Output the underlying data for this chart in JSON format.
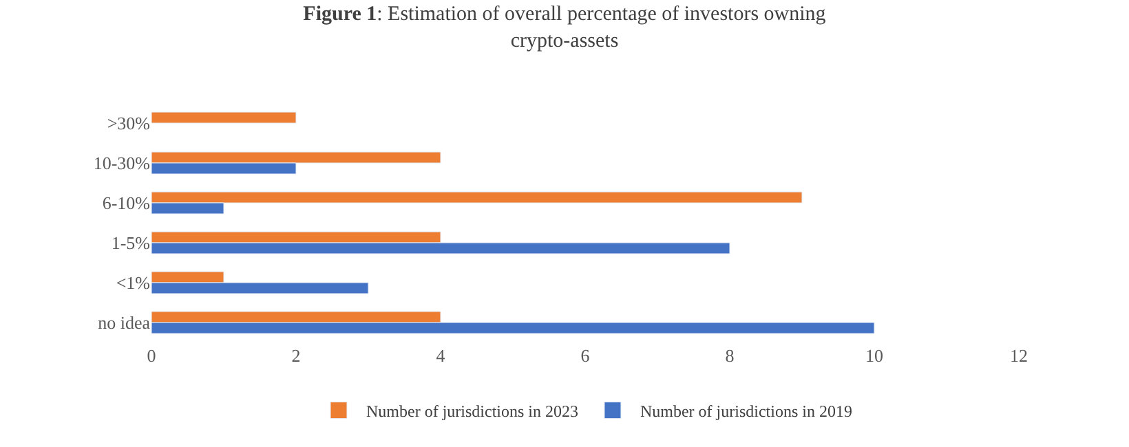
{
  "chart_data": {
    "type": "bar",
    "orientation": "horizontal",
    "title": "Figure 1: Estimation of overall percentage of investors owning crypto-assets",
    "categories": [
      ">30%",
      "10-30%",
      "6-10%",
      "1-5%",
      "<1%",
      "no idea"
    ],
    "series": [
      {
        "name": "Number of jurisdictions in 2023",
        "color": "#ed7d31",
        "values": [
          2,
          4,
          9,
          4,
          1,
          4
        ]
      },
      {
        "name": "Number of jurisdictions in 2019",
        "color": "#4472c4",
        "values": [
          null,
          2,
          1,
          8,
          3,
          10
        ]
      }
    ],
    "xlim": [
      0,
      12
    ],
    "xticks": [
      0,
      2,
      4,
      6,
      8,
      10,
      12
    ],
    "legend": "bottom"
  }
}
